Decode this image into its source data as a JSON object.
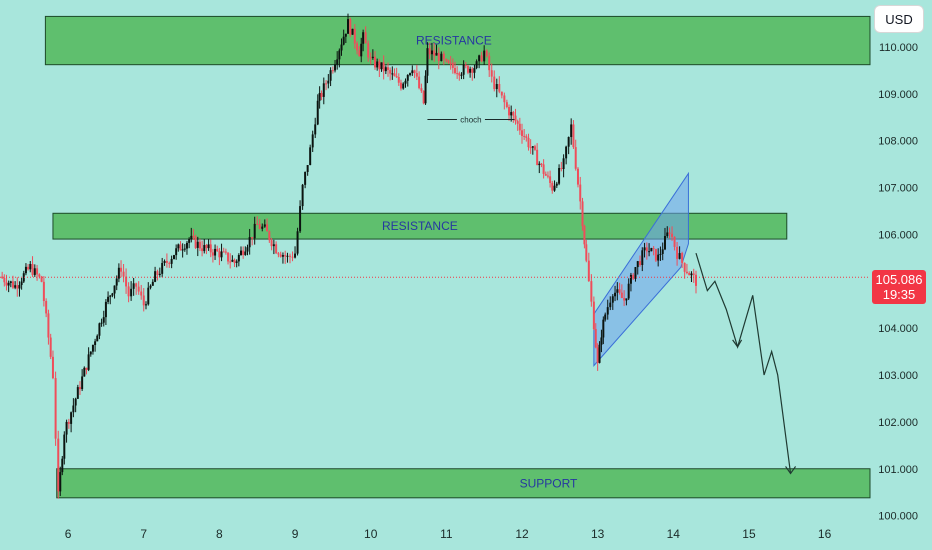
{
  "currency_button": "USD",
  "current_price": {
    "value": "105.086",
    "countdown": "19:35"
  },
  "colors": {
    "background": "#a8e6dc",
    "zone_fill": "#5fbf6e",
    "up_candle": "#0b1410",
    "down_candle": "#ef4d5a",
    "channel": "#6fa3ef",
    "price_line": "#f23645",
    "zone_label": "#2638a0"
  },
  "zones": [
    {
      "label": "RESISTANCE",
      "low": 109.62,
      "high": 110.65,
      "x_start": 5.7,
      "x_end": 16.6
    },
    {
      "label": "RESISTANCE",
      "low": 105.9,
      "high": 106.45,
      "x_start": 5.8,
      "x_end": 15.5
    },
    {
      "label": "SUPPORT",
      "low": 100.38,
      "high": 101.0,
      "x_start": 5.85,
      "x_end": 16.6
    }
  ],
  "annotations": {
    "choch": "choch"
  },
  "chart_data": {
    "type": "candlestick",
    "title": "",
    "xlabel": "",
    "ylabel": "",
    "x_ticks": [
      6,
      7,
      8,
      9,
      10,
      11,
      12,
      13,
      14,
      15,
      16
    ],
    "x_tick_labels": [
      "6",
      "7",
      "8",
      "9",
      "10",
      "11",
      "12",
      "13",
      "14",
      "15",
      "16"
    ],
    "y_ticks": [
      100,
      101,
      102,
      103,
      104,
      105,
      106,
      107,
      108,
      109,
      110
    ],
    "y_tick_labels": [
      "100.000",
      "101.000",
      "102.000",
      "103.000",
      "104.000",
      "105.000",
      "106.000",
      "107.000",
      "108.000",
      "109.000",
      "110.000"
    ],
    "xlim": [
      5.1,
      16.6
    ],
    "ylim": [
      99.8,
      111.0
    ],
    "current_price": 105.086,
    "series": [
      {
        "name": "",
        "x": [
          5.1,
          5.3,
          5.5,
          5.65,
          5.8,
          5.87,
          5.95,
          6.1,
          6.3,
          6.5,
          6.7,
          6.8,
          6.9,
          7.0,
          7.15,
          7.4,
          7.6,
          7.8,
          8.0,
          8.2,
          8.4,
          8.5,
          8.6,
          8.75,
          8.9,
          9.0,
          9.1,
          9.2,
          9.3,
          9.35,
          9.5,
          9.7,
          9.85,
          9.9,
          10.0,
          10.2,
          10.4,
          10.55,
          10.7,
          10.75,
          10.9,
          11.0,
          11.2,
          11.4,
          11.5,
          11.6,
          11.7,
          11.8,
          12.0,
          12.2,
          12.4,
          12.55,
          12.65,
          12.8,
          12.85,
          12.95,
          13.0,
          13.05,
          13.1,
          13.2,
          13.35,
          13.5,
          13.65,
          13.8,
          13.95,
          14.05,
          14.15,
          14.3
        ],
        "y": [
          105.1,
          104.9,
          105.3,
          105.0,
          103.0,
          100.4,
          101.8,
          102.5,
          103.5,
          104.5,
          105.3,
          104.7,
          104.9,
          104.5,
          105.1,
          105.6,
          105.9,
          105.7,
          105.6,
          105.4,
          105.9,
          106.2,
          106.1,
          105.7,
          105.5,
          105.6,
          107.0,
          107.8,
          108.8,
          109.0,
          109.6,
          110.5,
          109.9,
          110.2,
          109.7,
          109.5,
          109.2,
          109.6,
          108.8,
          109.9,
          109.8,
          109.6,
          109.5,
          109.6,
          109.9,
          109.3,
          109.0,
          108.7,
          108.2,
          107.6,
          107.0,
          107.5,
          108.3,
          106.3,
          105.4,
          104.1,
          103.2,
          103.9,
          104.3,
          104.8,
          104.6,
          105.3,
          105.7,
          105.5,
          106.1,
          105.6,
          105.3,
          105.0
        ]
      }
    ],
    "projection": {
      "x": [
        14.3,
        14.45,
        14.55,
        14.7,
        14.85,
        15.05,
        15.2,
        15.3,
        15.38,
        15.55
      ],
      "y": [
        105.6,
        104.8,
        105.0,
        104.4,
        103.6,
        104.7,
        103.0,
        103.5,
        103.0,
        100.9
      ]
    },
    "channel": {
      "upper": [
        [
          12.95,
          104.3
        ],
        [
          14.0,
          106.3
        ],
        [
          14.2,
          107.3
        ]
      ],
      "lower": [
        [
          12.95,
          103.2
        ],
        [
          14.1,
          105.3
        ]
      ]
    }
  }
}
